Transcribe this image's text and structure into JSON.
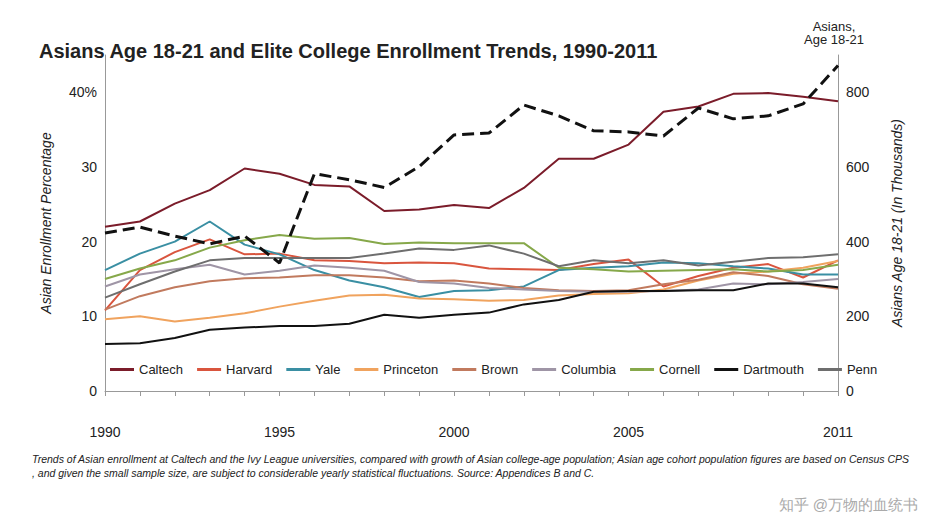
{
  "chart_data": {
    "type": "line",
    "title": "Asians Age 18-21 and Elite College Enrollment Trends, 1990-2011",
    "y_label": "Asian Enrollment Percentage",
    "y2_label": "Asians Age 18-21 (In Thousands)",
    "footnote": "Trends of Asian enrollment at Caltech and the Ivy League universities, compared with growth of Asian college-age population; Asian age cohort population figures are based on Census CPS, and given the small sample size, are subject to considerable yearly statistical fluctuations. Source: Appendices B and C.",
    "watermark": "知乎 @万物的血统书",
    "categories": [
      "1990",
      null,
      null,
      null,
      null,
      "1995",
      null,
      null,
      null,
      null,
      "2000",
      null,
      null,
      null,
      null,
      "2005",
      null,
      null,
      null,
      null,
      null,
      "2011"
    ],
    "ylim": [
      0,
      45
    ],
    "yticks": [
      0,
      10,
      20,
      30,
      {
        "value": 40,
        "label": "40%"
      }
    ],
    "y2lim": [
      0,
      900
    ],
    "y2ticks": [
      0,
      200,
      400,
      600,
      800
    ],
    "grid": false,
    "legend": "bottom",
    "series": [
      {
        "name": "Caltech",
        "color": "#7b1c2a",
        "values": [
          22,
          22.7,
          25.1,
          26.9,
          29.8,
          29.1,
          27.6,
          27.4,
          24.1,
          24.3,
          24.9,
          24.5,
          27.2,
          31.1,
          31.1,
          33,
          37.4,
          38.1,
          39.8,
          39.9,
          39.4,
          38.8
        ]
      },
      {
        "name": "Harvard",
        "color": "#d9553e",
        "values": [
          10.8,
          16.2,
          18.6,
          20.3,
          18.3,
          18.4,
          17.5,
          17.4,
          17.1,
          17.2,
          17.1,
          16.4,
          16.3,
          16.2,
          17,
          17.6,
          14,
          15.4,
          16.5,
          17,
          15.2,
          17.5
        ]
      },
      {
        "name": "Yale",
        "color": "#3a8fa3",
        "values": [
          16.2,
          18.4,
          20,
          22.7,
          19.6,
          18.3,
          16.2,
          14.8,
          13.9,
          12.6,
          13.4,
          13.5,
          14,
          16.2,
          16.5,
          16.7,
          17.2,
          17.1,
          16.7,
          16.4,
          15.6,
          15.6
        ]
      },
      {
        "name": "Princeton",
        "color": "#f0a35e",
        "values": [
          9.6,
          10,
          9.3,
          9.8,
          10.4,
          11.3,
          12.1,
          12.8,
          12.9,
          12.4,
          12.3,
          12.1,
          12.2,
          12.8,
          13,
          13.1,
          13.6,
          14.8,
          15.7,
          16,
          16.5,
          17.4
        ]
      },
      {
        "name": "Brown",
        "color": "#c17a5e",
        "values": [
          10.9,
          12.7,
          13.9,
          14.7,
          15.1,
          15.2,
          15.5,
          15.5,
          15.2,
          14.7,
          14.8,
          14.4,
          13.8,
          13.5,
          13.4,
          13.5,
          14.3,
          14.9,
          15.9,
          15.4,
          14.3,
          13.7
        ]
      },
      {
        "name": "Columbia",
        "color": "#9f95a6",
        "values": [
          14,
          15.6,
          16.3,
          16.9,
          15.6,
          16.1,
          16.8,
          16.5,
          16.1,
          14.6,
          14.4,
          13.8,
          13.6,
          13.4,
          13.3,
          13.3,
          13.4,
          13.6,
          14.4,
          14.3,
          14.6,
          15
        ]
      },
      {
        "name": "Cornell",
        "color": "#86a84a",
        "values": [
          15,
          16.4,
          17.5,
          19.2,
          20.2,
          20.9,
          20.4,
          20.5,
          19.7,
          19.9,
          19.8,
          19.8,
          19.8,
          16.5,
          16.3,
          16,
          16.1,
          16.2,
          16.3,
          16,
          16.2,
          16.9
        ]
      },
      {
        "name": "Dartmouth",
        "color": "#111111",
        "values": [
          6.3,
          6.4,
          7.1,
          8.2,
          8.5,
          8.7,
          8.7,
          9,
          10.2,
          9.8,
          10.2,
          10.5,
          11.6,
          12.2,
          13.3,
          13.4,
          13.4,
          13.5,
          13.5,
          14.4,
          14.4,
          13.9
        ]
      },
      {
        "name": "Penn",
        "color": "#6e6e6e",
        "values": [
          12.5,
          14.3,
          16,
          17.5,
          17.8,
          17.8,
          17.8,
          17.8,
          18.4,
          19.1,
          18.9,
          19.5,
          18.4,
          16.7,
          17.5,
          17.1,
          17.5,
          16.8,
          17.3,
          17.8,
          17.9,
          18.3
        ]
      },
      {
        "name": "Asians, Age 18-21",
        "color": "#111111",
        "axis": "y2",
        "line_style": "dashed",
        "values": [
          423,
          439,
          415,
          394,
          415,
          343,
          582,
          566,
          545,
          601,
          686,
          691,
          766,
          737,
          697,
          694,
          683,
          758,
          729,
          737,
          769,
          872
        ]
      }
    ]
  }
}
